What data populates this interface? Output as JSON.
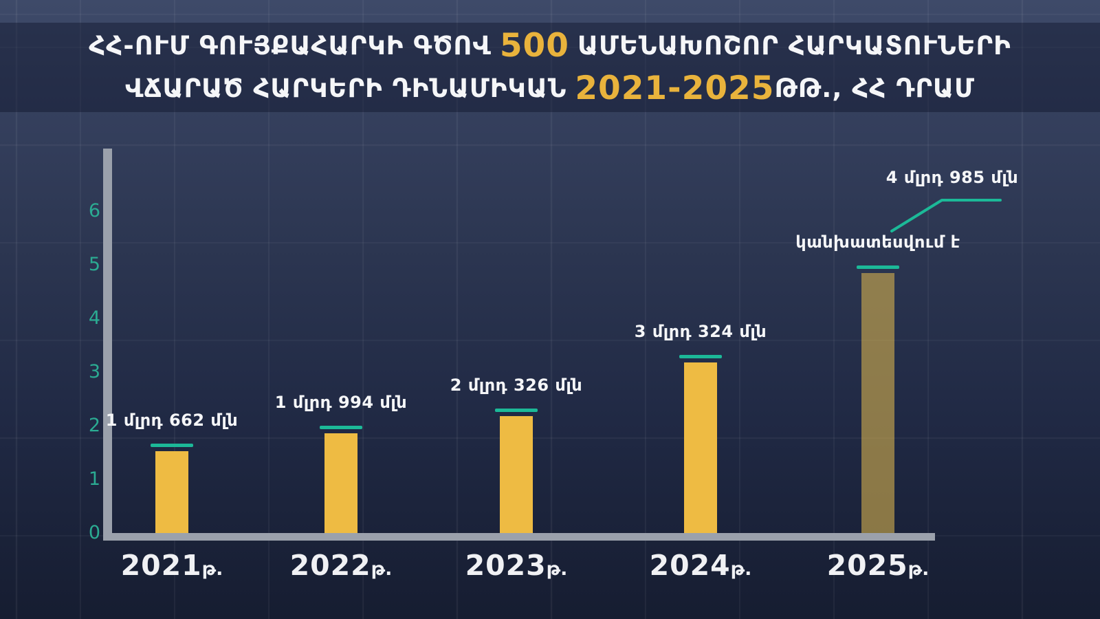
{
  "title": {
    "line1": {
      "pre": "ՀՀ-ՈՒՄ ԳՈՒՅՔԱՀԱՐԿԻ ԳԾՈՎ",
      "highlight": "500",
      "post": "ԱՄԵՆԱԽՈՇՈՐ ՀԱՐԿԱՏՈՒՆԵՐԻ"
    },
    "line2": {
      "pre": "ՎՃԱՐԱԾ ՀԱՐԿԵՐԻ ԴԻՆԱՄԻԿԱՆ",
      "highlight": "2021-2025",
      "post": "ԹԹ., ՀՀ ԴՐԱՄ"
    }
  },
  "chart_data": {
    "type": "bar",
    "title": "ՀՀ-ՈՒՄ ԳՈՒՅՔԱՀԱՐԿԻ ԳԾՈՎ 500 ԱՄԵՆԱԽՈՇՈՐ ՀԱՐԿԱՏՈՒՆԵՐԻ ՎՃԱՐԱԾ ՀԱՐԿԵՐԻ ԴԻՆԱՄԻԿԱՆ 2021-2025ԹԹ., ՀՀ ԴՐԱՄ",
    "categories": [
      "2021",
      "2022",
      "2023",
      "2024",
      "2025"
    ],
    "category_suffix": "թ.",
    "values_billion_amd": [
      1.662,
      1.994,
      2.326,
      3.324,
      4.985
    ],
    "bar_labels": [
      "1 մլրդ 662 մլն",
      "1 մլրդ 994 մլն",
      "2 մլրդ 326 մլն",
      "3 մլրդ 324 մլն",
      "4 մլրդ 985 մլն"
    ],
    "y_ticks": [
      0,
      1,
      2,
      3,
      4,
      5,
      6
    ],
    "ylim": [
      0,
      6.5
    ],
    "grid": true,
    "legend": false,
    "forecast": {
      "index": 4,
      "note": "կանխատեսվում է"
    },
    "colors": {
      "bar": "#eebb43",
      "bar_forecast": "rgba(208,173,78,0.62)",
      "accent_teal": "#1cb998",
      "tick_teal": "#2bab92",
      "gold_highlight": "#e9b33c",
      "axis_gray": "#9ba1ac",
      "text_white": "#f5f6f8",
      "background_top": "#3e4a69",
      "background_bottom": "#161d31",
      "banner_navy": "#26304a"
    }
  }
}
